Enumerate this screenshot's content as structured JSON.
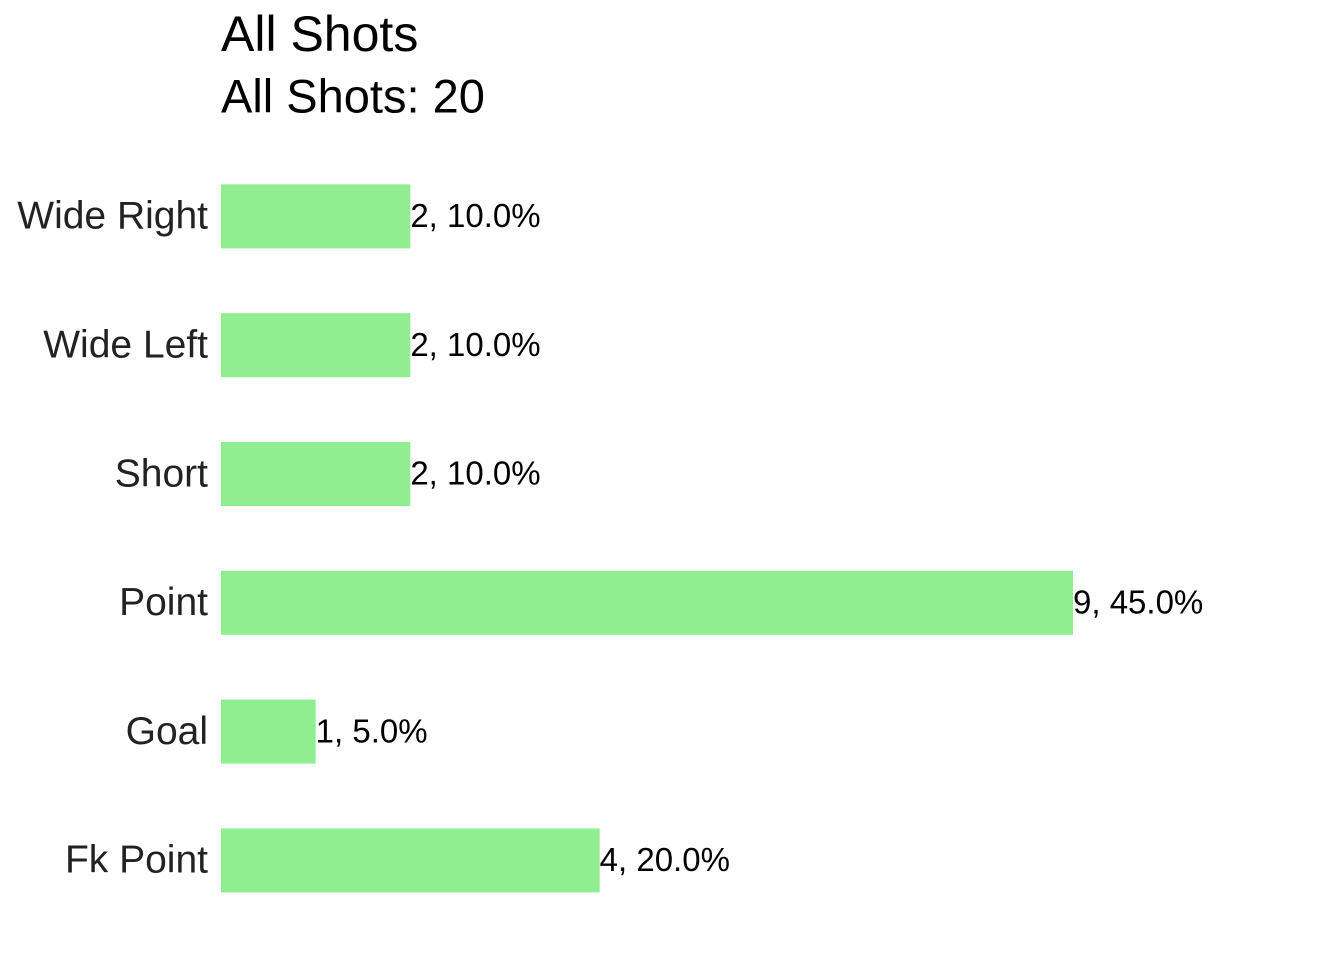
{
  "chart_data": {
    "type": "barh",
    "title": "All Shots",
    "subtitle": "All Shots: 20",
    "categories": [
      "Wide Right",
      "Wide Left",
      "Short",
      "Point",
      "Goal",
      "Fk Point"
    ],
    "values": [
      2,
      2,
      2,
      9,
      1,
      4
    ],
    "value_labels": [
      "2, 10.0%",
      "2, 10.0%",
      "2, 10.0%",
      "9, 45.0%",
      "1, 5.0%",
      "4, 20.0%"
    ],
    "color": "#90ee90"
  }
}
